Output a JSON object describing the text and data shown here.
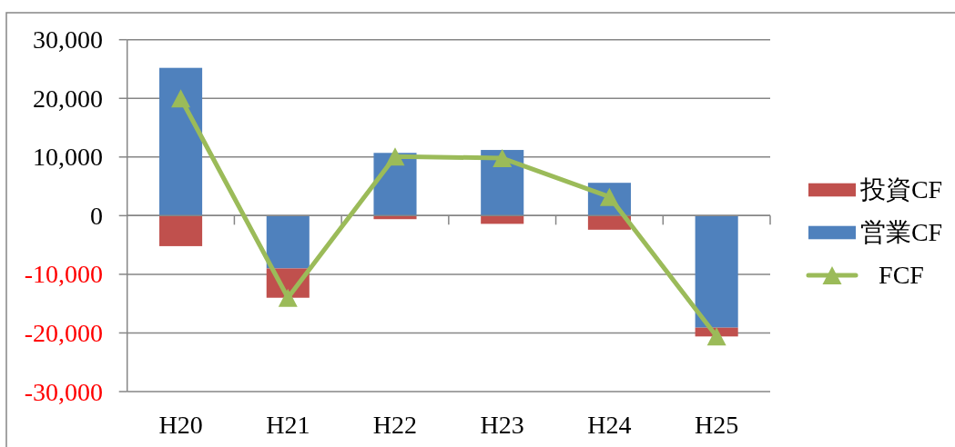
{
  "chart_data": {
    "type": "bar",
    "stacked": true,
    "categories": [
      "H20",
      "H21",
      "H22",
      "H23",
      "H24",
      "H25"
    ],
    "series": [
      {
        "name": "営業CF",
        "color": "#4f81bd",
        "values": [
          25200,
          -9000,
          10700,
          11200,
          5600,
          -19100
        ]
      },
      {
        "name": "投資CF",
        "color": "#c0504d",
        "values": [
          -5200,
          -5000,
          -600,
          -1400,
          -2400,
          -1500
        ]
      },
      {
        "name": "FCF",
        "type": "line",
        "color": "#9bbb59",
        "marker": "triangle",
        "line_style": "solid",
        "values": [
          20000,
          -14000,
          10100,
          9800,
          3200,
          -20600
        ]
      }
    ],
    "ylim": [
      -30000,
      30000
    ],
    "yticks": [
      {
        "value": -30000,
        "label": "-30,000"
      },
      {
        "value": -20000,
        "label": "-20,000"
      },
      {
        "value": -10000,
        "label": "-10,000"
      },
      0,
      {
        "value": 10000,
        "label": "10,000"
      },
      {
        "value": 20000,
        "label": "20,000"
      },
      {
        "value": 30000,
        "label": "30,000"
      }
    ],
    "grid": "y",
    "legend": "right"
  }
}
